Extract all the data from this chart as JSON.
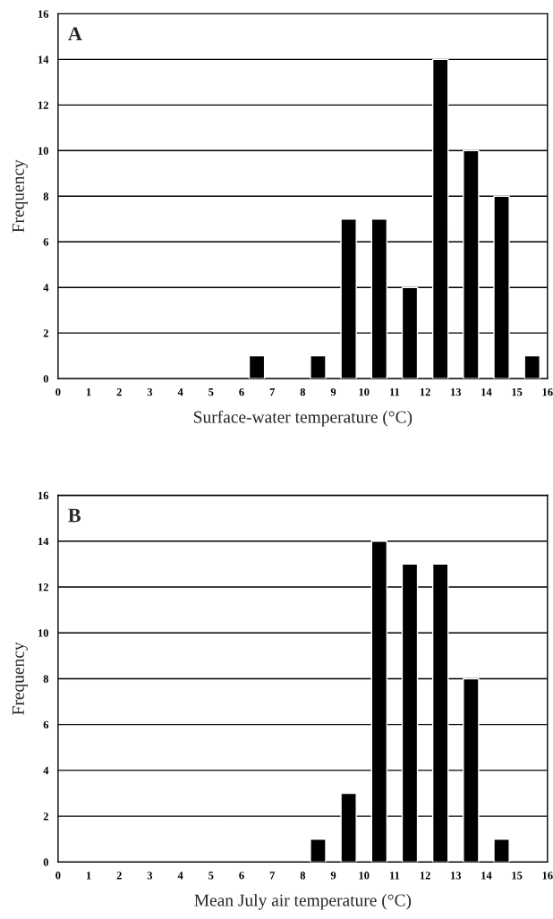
{
  "chart_data": [
    {
      "type": "bar",
      "x": [
        6.5,
        8.5,
        9.5,
        10.5,
        11.5,
        12.5,
        13.5,
        14.5,
        15.5
      ],
      "values": [
        1,
        1,
        7,
        7,
        4,
        14,
        10,
        8,
        1
      ],
      "color": "#000000",
      "xlabel": "Surface-water temperature (°C)",
      "ylabel": "Frequency",
      "xlim": [
        0,
        16
      ],
      "xticks": [
        0,
        1,
        2,
        3,
        4,
        5,
        6,
        7,
        8,
        9,
        10,
        11,
        12,
        13,
        14,
        15,
        16
      ],
      "ylim": [
        0,
        16
      ],
      "yticks": [
        0,
        2,
        4,
        6,
        8,
        10,
        12,
        14,
        16
      ],
      "grid": "y",
      "annotations": [
        "A"
      ]
    },
    {
      "type": "bar",
      "x": [
        8.5,
        9.5,
        10.5,
        11.5,
        12.5,
        13.5,
        14.5
      ],
      "values": [
        1,
        3,
        14,
        13,
        13,
        8,
        1
      ],
      "color": "#000000",
      "xlabel": "Mean July air temperature (°C)",
      "ylabel": "Frequency",
      "xlim": [
        0,
        16
      ],
      "xticks": [
        0,
        1,
        2,
        3,
        4,
        5,
        6,
        7,
        8,
        9,
        10,
        11,
        12,
        13,
        14,
        15,
        16
      ],
      "ylim": [
        0,
        16
      ],
      "yticks": [
        0,
        2,
        4,
        6,
        8,
        10,
        12,
        14,
        16
      ],
      "grid": "y",
      "annotations": [
        "B"
      ]
    }
  ]
}
